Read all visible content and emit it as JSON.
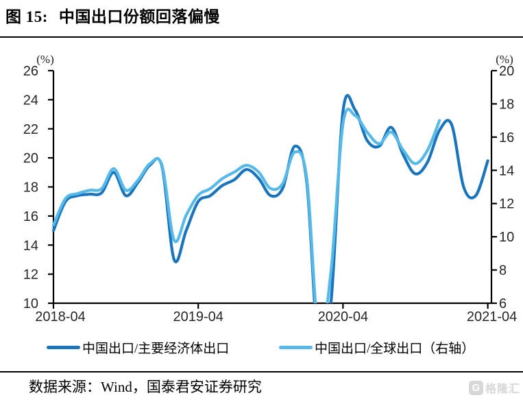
{
  "header": {
    "figure_label": "图 15:",
    "title": "中国出口份额回落偏慢"
  },
  "chart_data": {
    "type": "line",
    "title": "中国出口份额回落偏慢",
    "grid": false,
    "legend_position": "bottom",
    "x_months": [
      "2018-04",
      "2018-05",
      "2018-06",
      "2018-07",
      "2018-08",
      "2018-09",
      "2018-10",
      "2018-11",
      "2018-12",
      "2019-01",
      "2019-02",
      "2019-03",
      "2019-04",
      "2019-05",
      "2019-06",
      "2019-07",
      "2019-08",
      "2019-09",
      "2019-10",
      "2019-11",
      "2019-12",
      "2020-01",
      "2020-02",
      "2020-03",
      "2020-04",
      "2020-05",
      "2020-06",
      "2020-07",
      "2020-08",
      "2020-09",
      "2020-10",
      "2020-11",
      "2020-12",
      "2021-01",
      "2021-02",
      "2021-03",
      "2021-04"
    ],
    "x_tick_labels": [
      "2018-04",
      "2019-04",
      "2020-04",
      "2021-04"
    ],
    "left_axis": {
      "unit": "(%)",
      "min": 10,
      "max": 26,
      "step": 2,
      "ticks": [
        26,
        24,
        22,
        20,
        18,
        16,
        14,
        12,
        10
      ]
    },
    "right_axis": {
      "unit": "(%)",
      "min": 6,
      "max": 20,
      "step": 2,
      "ticks": [
        20,
        18,
        16,
        14,
        12,
        10,
        8,
        6
      ]
    },
    "series": [
      {
        "name": "中国出口/主要经济体出口",
        "axis": "left",
        "color": "#1B75BC",
        "values": [
          15.0,
          17.0,
          17.4,
          17.5,
          17.6,
          19.0,
          17.4,
          18.3,
          19.5,
          19.4,
          13.0,
          15.0,
          17.0,
          17.4,
          18.1,
          18.5,
          19.2,
          18.6,
          17.4,
          17.9,
          20.8,
          18.3,
          6.5,
          10.0,
          23.2,
          23.3,
          21.2,
          20.8,
          22.1,
          20.2,
          18.9,
          19.7,
          21.9,
          22.3,
          18.0,
          17.4,
          19.8
        ]
      },
      {
        "name": "中国出口/全球出口（右轴）",
        "axis": "right",
        "color": "#56B9E8",
        "values": [
          10.7,
          12.3,
          12.6,
          12.8,
          12.9,
          14.1,
          12.8,
          13.4,
          14.4,
          14.3,
          9.8,
          11.3,
          12.5,
          12.9,
          13.5,
          13.9,
          14.3,
          13.9,
          12.9,
          13.2,
          15.1,
          13.5,
          4.0,
          7.9,
          16.8,
          17.3,
          16.3,
          15.6,
          16.3,
          15.2,
          14.4,
          15.2,
          17.0
        ]
      }
    ]
  },
  "footer": {
    "source_text": "数据来源：Wind，国泰君安证券研究",
    "logo_letter": "G",
    "logo_text": "格隆汇"
  }
}
